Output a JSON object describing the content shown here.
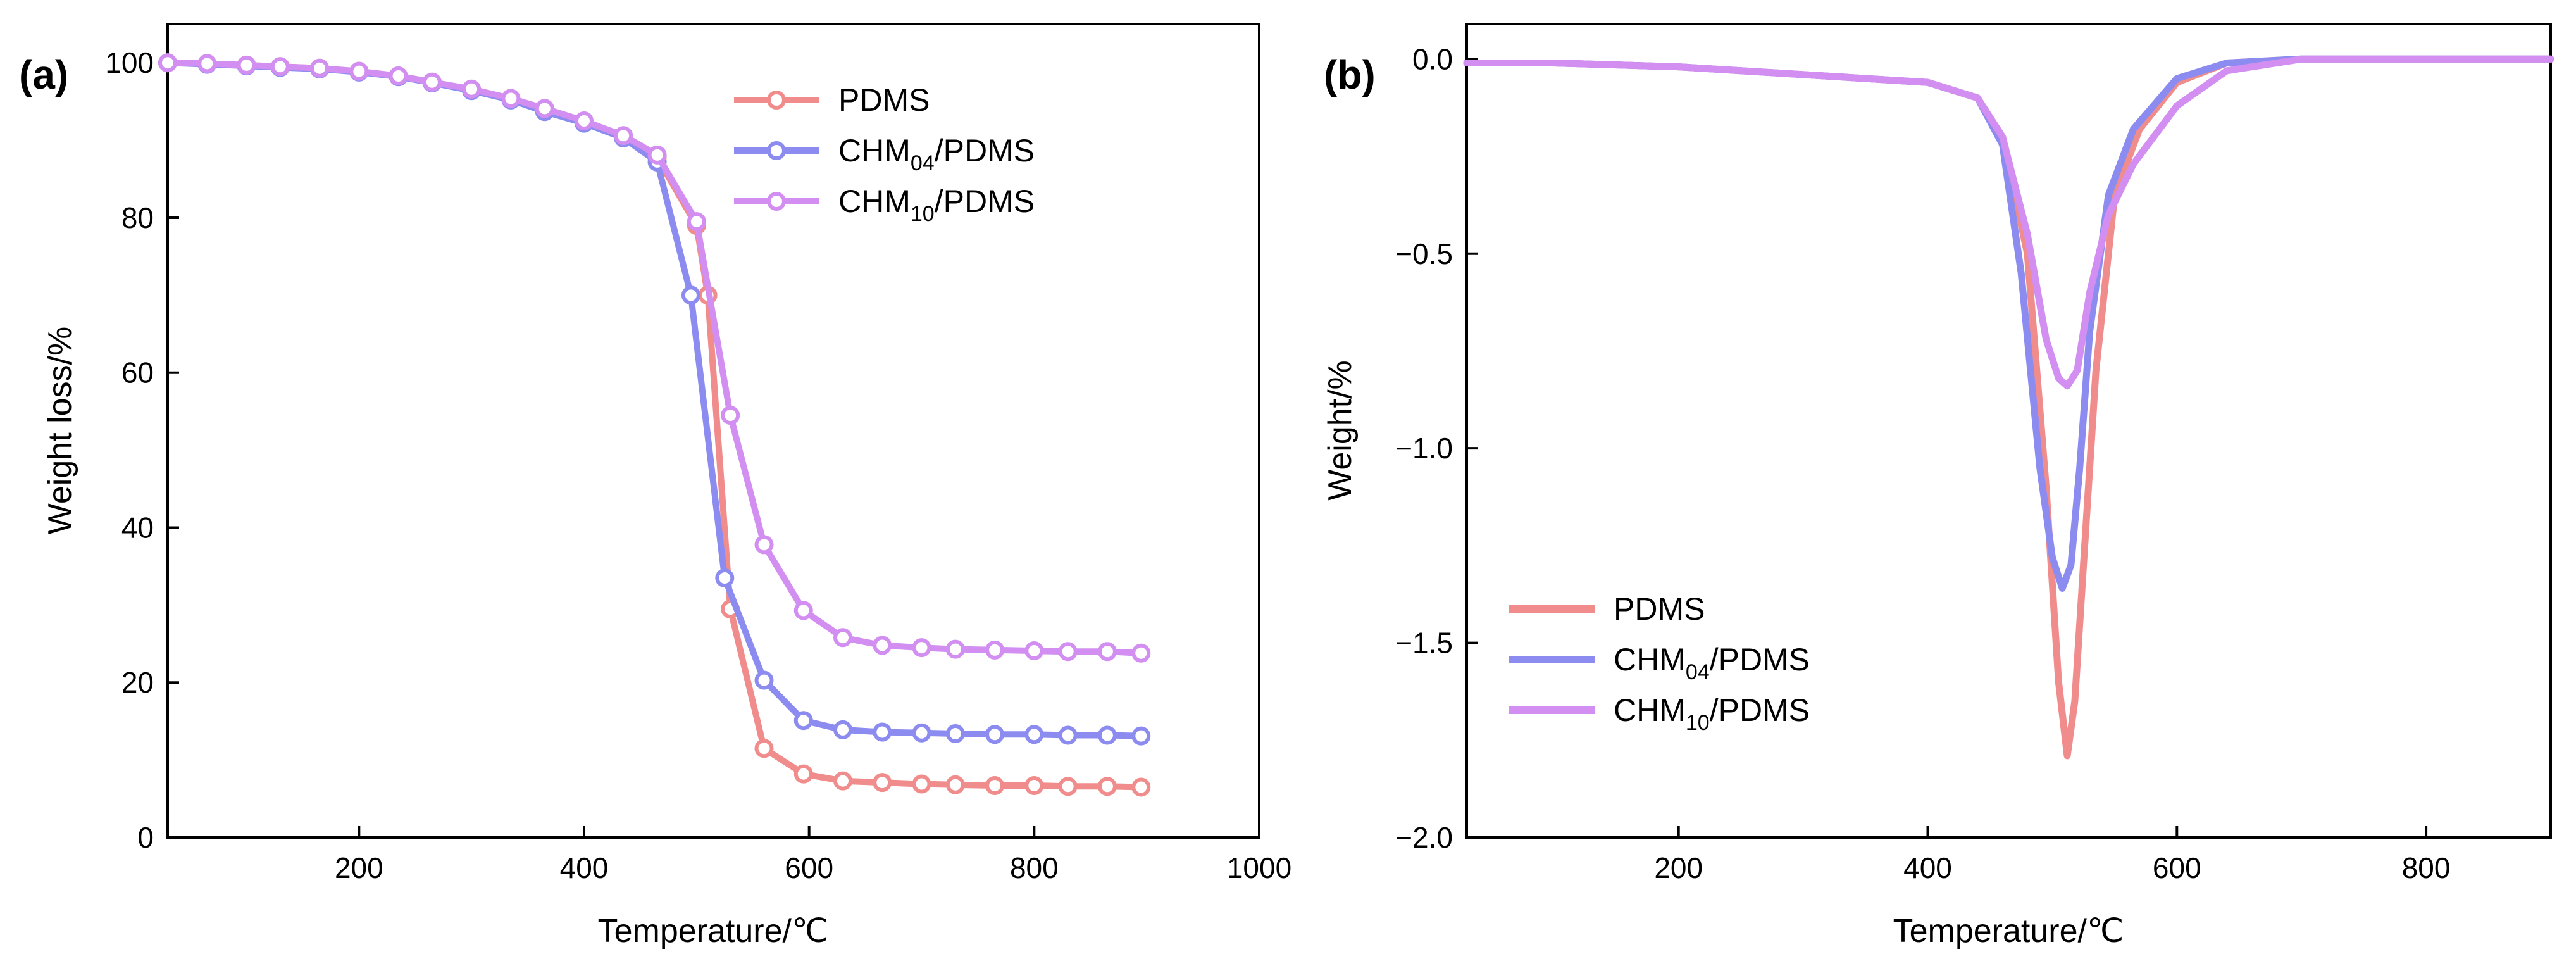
{
  "chart_data": [
    {
      "panel_label": "(a)",
      "type": "line",
      "xlabel": "Temperature/℃",
      "ylabel": "Weight loss/%",
      "xlim": [
        30,
        1000
      ],
      "ylim": [
        0,
        105
      ],
      "xticks": [
        200,
        400,
        600,
        800,
        1000
      ],
      "xtick_labels": [
        "200",
        "400",
        "600",
        "800",
        "1000"
      ],
      "yticks": [
        0,
        20,
        40,
        60,
        80,
        100
      ],
      "ytick_labels": [
        "0",
        "20",
        "40",
        "60",
        "80",
        "100"
      ],
      "legend_position": "top-right",
      "series": [
        {
          "name": "PDMS",
          "name_main": "PDMS",
          "name_sub": "",
          "name_rest": "",
          "color": "#f08c8c",
          "markers": true,
          "x": [
            30,
            65,
            100,
            130,
            165,
            200,
            235,
            265,
            300,
            335,
            365,
            400,
            435,
            465,
            500,
            510,
            530,
            560,
            595,
            630,
            665,
            700,
            730,
            765,
            800,
            830,
            865,
            895
          ],
          "y": [
            100,
            99.9,
            99.7,
            99.5,
            99.3,
            98.9,
            98.3,
            97.5,
            96.5,
            95.3,
            94,
            92.4,
            90.5,
            87.8,
            79,
            70,
            29.5,
            11.5,
            8.2,
            7.3,
            7.1,
            6.9,
            6.8,
            6.7,
            6.7,
            6.6,
            6.6,
            6.5
          ]
        },
        {
          "name": "CHM04/PDMS",
          "name_main": "CHM",
          "name_sub": "04",
          "name_rest": "/PDMS",
          "color": "#8c8cf0",
          "markers": true,
          "x": [
            30,
            65,
            100,
            130,
            165,
            200,
            235,
            265,
            300,
            335,
            365,
            400,
            435,
            465,
            495,
            525,
            560,
            595,
            630,
            665,
            700,
            730,
            765,
            800,
            830,
            865,
            895
          ],
          "y": [
            100,
            99.8,
            99.6,
            99.4,
            99.2,
            98.8,
            98.2,
            97.4,
            96.4,
            95.2,
            93.7,
            92.2,
            90.3,
            87.2,
            70,
            33.5,
            20.3,
            15.1,
            13.9,
            13.6,
            13.5,
            13.4,
            13.3,
            13.3,
            13.2,
            13.2,
            13.1
          ]
        },
        {
          "name": "CHM10/PDMS",
          "name_main": "CHM",
          "name_sub": "10",
          "name_rest": "/PDMS",
          "color": "#d28ef0",
          "markers": true,
          "x": [
            30,
            65,
            100,
            130,
            165,
            200,
            235,
            265,
            300,
            335,
            365,
            400,
            435,
            465,
            500,
            530,
            560,
            595,
            630,
            665,
            700,
            730,
            765,
            800,
            830,
            865,
            895
          ],
          "y": [
            100,
            99.9,
            99.7,
            99.5,
            99.3,
            98.9,
            98.3,
            97.5,
            96.6,
            95.4,
            94.1,
            92.5,
            90.6,
            88.1,
            79.5,
            54.5,
            37.8,
            29.3,
            25.8,
            24.8,
            24.5,
            24.3,
            24.2,
            24.1,
            24,
            24,
            23.8
          ]
        }
      ]
    },
    {
      "panel_label": "(b)",
      "type": "line",
      "xlabel": "Temperature/℃",
      "ylabel": "Weight/%",
      "xlim": [
        30,
        900
      ],
      "ylim": [
        -2.0,
        0.09
      ],
      "xticks": [
        200,
        400,
        600,
        800
      ],
      "xtick_labels": [
        "200",
        "400",
        "600",
        "800"
      ],
      "yticks": [
        0,
        -0.5,
        -1.0,
        -1.5,
        -2.0
      ],
      "ytick_labels": [
        "0.0",
        "−0.5",
        "−1.0",
        "−1.5",
        "−2.0"
      ],
      "legend_position": "bottom-left",
      "series": [
        {
          "name": "PDMS",
          "name_main": "PDMS",
          "name_sub": "",
          "name_rest": "",
          "color": "#f08c8c",
          "markers": false,
          "x": [
            30,
            100,
            200,
            300,
            400,
            440,
            460,
            480,
            495,
            505,
            512,
            518,
            525,
            535,
            550,
            570,
            600,
            640,
            700,
            800,
            900
          ],
          "y": [
            -0.01,
            -0.01,
            -0.02,
            -0.04,
            -0.06,
            -0.1,
            -0.2,
            -0.5,
            -1.1,
            -1.6,
            -1.79,
            -1.65,
            -1.3,
            -0.8,
            -0.35,
            -0.18,
            -0.06,
            -0.01,
            0,
            0,
            0
          ]
        },
        {
          "name": "CHM04/PDMS",
          "name_main": "CHM",
          "name_sub": "04",
          "name_rest": "/PDMS",
          "color": "#8c8cf0",
          "markers": false,
          "x": [
            30,
            100,
            200,
            300,
            400,
            440,
            460,
            475,
            490,
            500,
            508,
            515,
            522,
            530,
            545,
            565,
            600,
            640,
            700,
            800,
            900
          ],
          "y": [
            -0.01,
            -0.01,
            -0.02,
            -0.04,
            -0.06,
            -0.1,
            -0.22,
            -0.55,
            -1.05,
            -1.28,
            -1.36,
            -1.3,
            -1.05,
            -0.7,
            -0.35,
            -0.18,
            -0.05,
            -0.01,
            0,
            0,
            0
          ]
        },
        {
          "name": "CHM10/PDMS",
          "name_main": "CHM",
          "name_sub": "10",
          "name_rest": "/PDMS",
          "color": "#d28ef0",
          "markers": false,
          "x": [
            30,
            100,
            200,
            300,
            400,
            440,
            460,
            480,
            495,
            505,
            512,
            520,
            530,
            545,
            565,
            600,
            640,
            700,
            800,
            900
          ],
          "y": [
            -0.01,
            -0.01,
            -0.02,
            -0.04,
            -0.06,
            -0.1,
            -0.2,
            -0.45,
            -0.72,
            -0.82,
            -0.84,
            -0.8,
            -0.6,
            -0.4,
            -0.27,
            -0.12,
            -0.03,
            0,
            0,
            0
          ]
        }
      ]
    }
  ]
}
